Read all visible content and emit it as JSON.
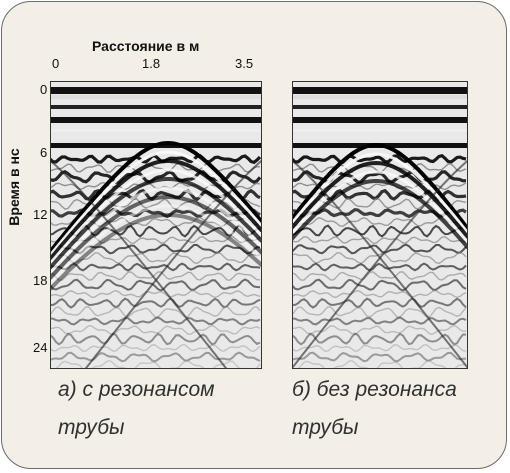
{
  "figure": {
    "x_axis_title": "Расстояние в м",
    "x_ticks": [
      "0",
      "1.8",
      "3.5"
    ],
    "y_axis_title": "Время в нс",
    "y_ticks": [
      "0",
      "6",
      "12",
      "18",
      "24"
    ]
  },
  "panels": [
    {
      "caption_line1": "а)  с резонансом",
      "caption_line2": "трубы"
    },
    {
      "caption_line1": "б)  без резонанса",
      "caption_line2": "трубы"
    }
  ],
  "colors": {
    "background": "#f3eee6",
    "border": "#6b6b6b",
    "caption": "#2f3030"
  }
}
